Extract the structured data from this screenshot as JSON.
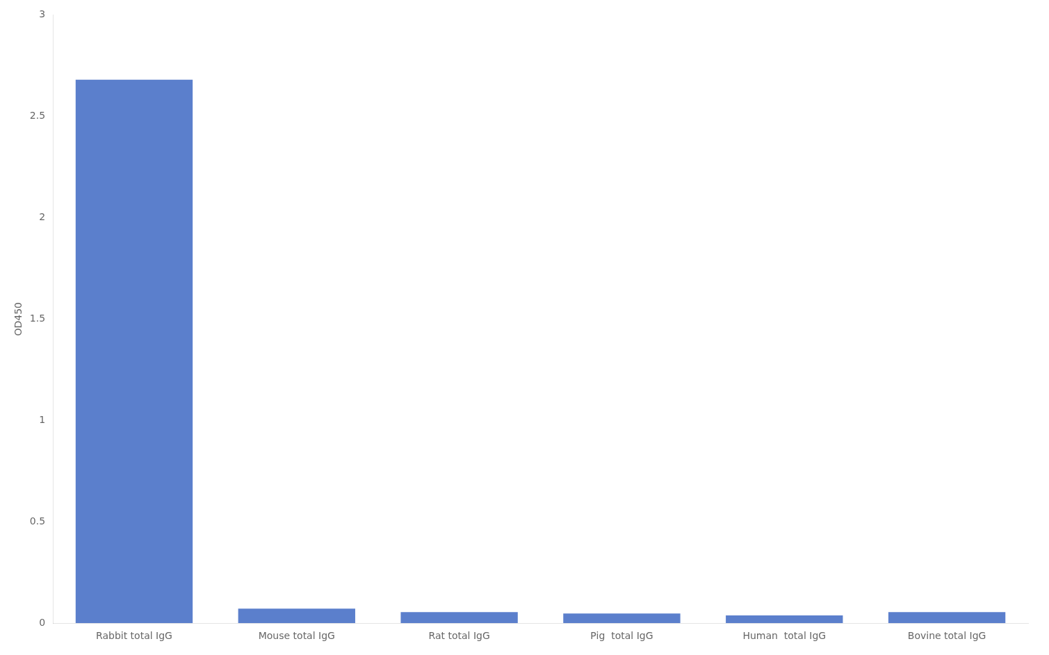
{
  "chart_data": {
    "type": "bar",
    "categories": [
      "Rabbit total IgG",
      "Mouse total IgG",
      "Rat total IgG",
      "Pig  total IgG",
      "Human  total IgG",
      "Bovine total IgG"
    ],
    "values": [
      2.68,
      0.072,
      0.055,
      0.048,
      0.038,
      0.055
    ],
    "color": "#5b7fcc",
    "ylabel": "OD450",
    "ylim": [
      0,
      3.0
    ],
    "yticks": [
      0,
      0.5,
      1,
      1.5,
      2,
      2.5,
      3
    ],
    "grid": false
  }
}
